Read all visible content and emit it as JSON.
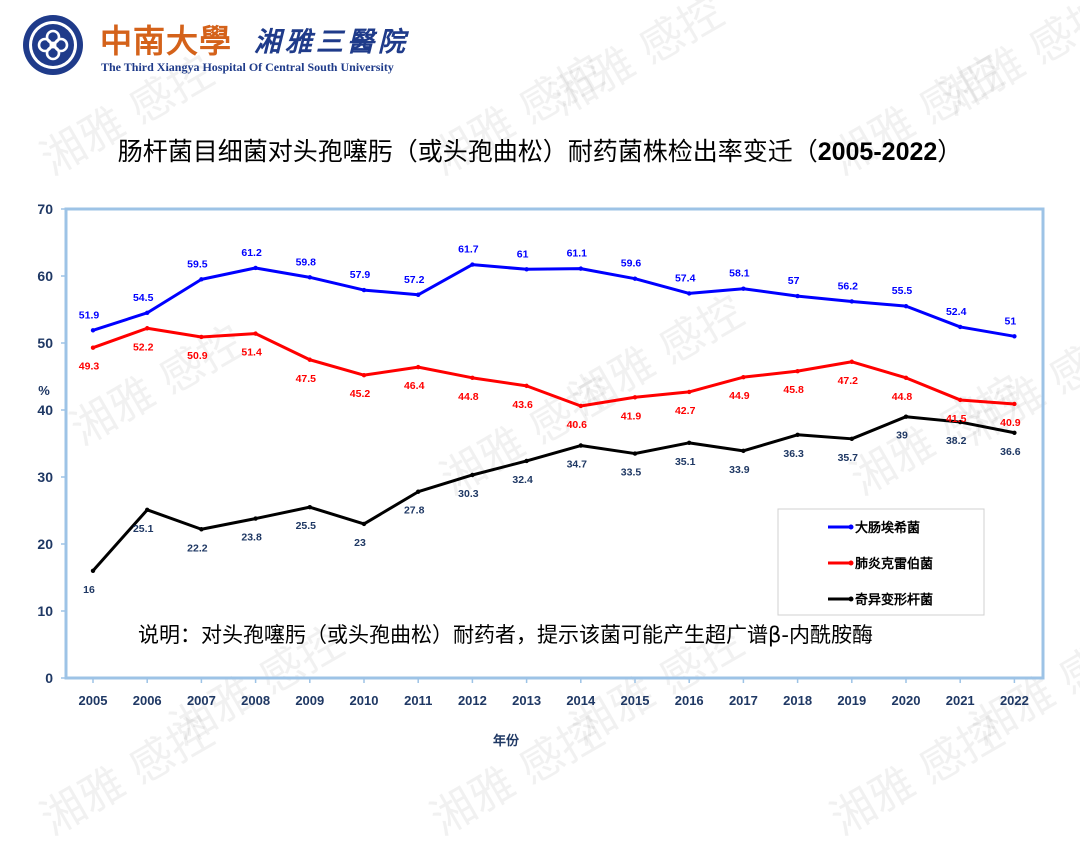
{
  "header": {
    "hospital_cn": "中南大學",
    "hospital_cn2": "湘雅三醫院",
    "hospital_en": "The Third Xiangya Hospital Of Central South University"
  },
  "title_prefix": "肠杆菌目细菌对头孢噻肟（或头孢曲松）耐药菌株检出率变迁（",
  "title_years": "2005-2022",
  "title_suffix": "）",
  "watermark": "湘雅 感控",
  "colors": {
    "axis_border": "#9dc3e6",
    "brand_orange": "#d4621a",
    "brand_blue": "#1f3b8a",
    "label_blue": "#1f3864"
  },
  "chart_data": {
    "type": "line",
    "x": [
      "2005",
      "2006",
      "2007",
      "2008",
      "2009",
      "2010",
      "2011",
      "2012",
      "2013",
      "2014",
      "2015",
      "2016",
      "2017",
      "2018",
      "2019",
      "2020",
      "2021",
      "2022"
    ],
    "xlabel": "年份",
    "ylabel": "%",
    "ylim": [
      0,
      70
    ],
    "yticks": [
      0,
      10,
      20,
      30,
      40,
      50,
      60,
      70
    ],
    "grid": false,
    "legend_position": "bottom-right",
    "note": "说明：对头孢噻肟（或头孢曲松）耐药者，提示该菌可能产生超广谱β-内酰胺酶",
    "series": [
      {
        "name": "大肠埃希菌",
        "color": "#0000ff",
        "label_color": "#0000ff",
        "label_pos": "above",
        "values": [
          51.9,
          54.5,
          59.5,
          61.2,
          59.8,
          57.9,
          57.2,
          61.7,
          61,
          61.1,
          59.6,
          57.4,
          58.1,
          57,
          56.2,
          55.5,
          52.4,
          51
        ]
      },
      {
        "name": "肺炎克雷伯菌",
        "color": "#ff0000",
        "label_color": "#ff0000",
        "label_pos": "below",
        "values": [
          49.3,
          52.2,
          50.9,
          51.4,
          47.5,
          45.2,
          46.4,
          44.8,
          43.6,
          40.6,
          41.9,
          42.7,
          44.9,
          45.8,
          47.2,
          44.8,
          41.5,
          40.9
        ]
      },
      {
        "name": "奇异变形杆菌",
        "color": "#000000",
        "label_color": "#1f3864",
        "label_pos": "below",
        "values": [
          16,
          25.1,
          22.2,
          23.8,
          25.5,
          23,
          27.8,
          30.3,
          32.4,
          34.7,
          33.5,
          35.1,
          33.9,
          36.3,
          35.7,
          39,
          38.2,
          36.6
        ]
      }
    ]
  }
}
